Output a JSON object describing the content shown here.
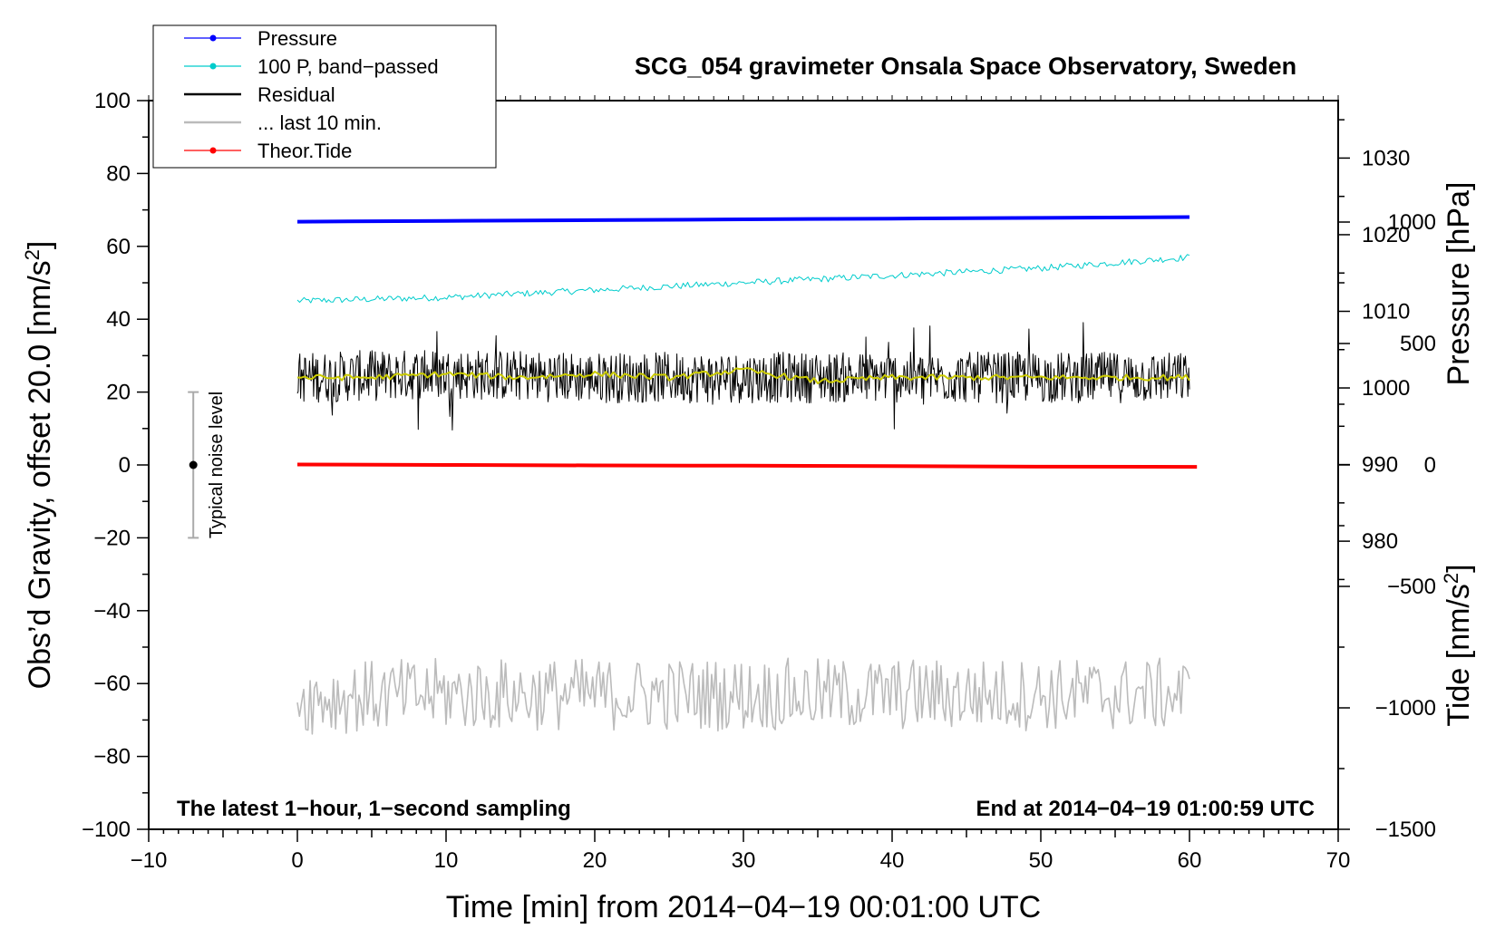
{
  "chart_data": {
    "type": "line",
    "title": "SCG_054 gravimeter Onsala Space Observatory, Sweden",
    "xlabel": "Time [min] from 2014−04−19 00:01:00 UTC",
    "ylabel_left": "Obs’d Gravity, offset 20.0 [nm/s",
    "ylabel_left_sup": "2",
    "ylabel_left_close": "]",
    "ylabel_pressure": "Pressure [hPa]",
    "ylabel_tide": "Tide [nm/s",
    "ylabel_tide_sup": "2",
    "ylabel_tide_close": "]",
    "xlim": [
      -10,
      70
    ],
    "ylim_left": [
      -100,
      100
    ],
    "ylim_pressure": [
      942.4,
      1037.5
    ],
    "ylim_tide": [
      -1500,
      1500
    ],
    "x_ticks": [
      -10,
      0,
      10,
      20,
      30,
      40,
      50,
      60,
      70
    ],
    "x_tick_labels": [
      "−10",
      "0",
      "10",
      "20",
      "30",
      "40",
      "50",
      "60",
      "70"
    ],
    "y_left_ticks": [
      -100,
      -80,
      -60,
      -40,
      -20,
      0,
      20,
      40,
      60,
      80,
      100
    ],
    "y_left_tick_labels": [
      "−100",
      "−80",
      "−60",
      "−40",
      "−20",
      "0",
      "20",
      "40",
      "60",
      "80",
      "100"
    ],
    "pressure_ticks": [
      980,
      990,
      1000,
      1010,
      1020,
      1030
    ],
    "pressure_tick_labels": [
      "980",
      "990",
      "1000",
      "1010",
      "1020",
      "1030"
    ],
    "tide_ticks": [
      -1500,
      -1000,
      -500,
      0,
      500,
      1000
    ],
    "tide_tick_labels": [
      "−1500",
      "−1000",
      "−500",
      "0",
      "500",
      "1000"
    ],
    "legend": {
      "position": "top-left",
      "entries": [
        {
          "label": "Pressure",
          "color": "#0000ff",
          "marker": true
        },
        {
          "label": "100 P, band−passed",
          "color": "#00cccc",
          "marker": true
        },
        {
          "label": "Residual",
          "color": "#000000",
          "marker": false
        },
        {
          "label": "... last 10 min.",
          "color": "#bbbbbb",
          "marker": false
        },
        {
          "label": "Theor.Tide",
          "color": "#ff0000",
          "marker": true
        }
      ]
    },
    "series": [
      {
        "name": "Pressure",
        "axis": "pressure",
        "color": "#0000ff",
        "x": [
          0,
          10,
          20,
          30,
          40,
          50,
          60
        ],
        "values": [
          1021.7,
          1021.8,
          1021.9,
          1022.0,
          1022.1,
          1022.2,
          1022.3
        ]
      },
      {
        "name": "100 P, band−passed",
        "axis": "left",
        "color": "#00cccc",
        "x": [
          0,
          10,
          20,
          30,
          40,
          50,
          60
        ],
        "values": [
          45,
          46,
          48,
          50,
          52,
          54,
          57
        ]
      },
      {
        "name": "Residual",
        "axis": "left",
        "color": "#000000",
        "x": [
          0,
          10,
          20,
          30,
          40,
          50,
          60
        ],
        "values": [
          24,
          25,
          24,
          24,
          24,
          24,
          24
        ],
        "range": [
          2,
          45
        ]
      },
      {
        "name": "Residual smoothed",
        "axis": "left",
        "color": "#cccc00",
        "x": [
          0,
          5,
          10,
          15,
          20,
          25,
          30,
          35,
          40,
          45,
          50,
          55,
          60
        ],
        "values": [
          24,
          24,
          25,
          24,
          25,
          24,
          26,
          23,
          24,
          24,
          24,
          24,
          24
        ]
      },
      {
        "name": "... last 10 min.",
        "axis": "left",
        "color": "#bbbbbb",
        "x": [
          0,
          10,
          20,
          30,
          40,
          50,
          60
        ],
        "values": [
          -64,
          -63,
          -63,
          -63,
          -63,
          -63,
          -63
        ],
        "range": [
          -75,
          -50
        ]
      },
      {
        "name": "Theor.Tide",
        "axis": "tide",
        "color": "#ff0000",
        "x": [
          0,
          10,
          20,
          30,
          40,
          50,
          60.5
        ],
        "values": [
          2,
          0,
          -2,
          -3,
          -5,
          -7,
          -8
        ]
      }
    ],
    "noise_bar": {
      "x": -7,
      "center": 0,
      "low": -20,
      "high": 20,
      "label": "Typical noise level"
    },
    "annotations": {
      "bottom_left": "The latest 1−hour, 1−second sampling",
      "bottom_right": "End at 2014−04−19 01:00:59 UTC"
    }
  }
}
